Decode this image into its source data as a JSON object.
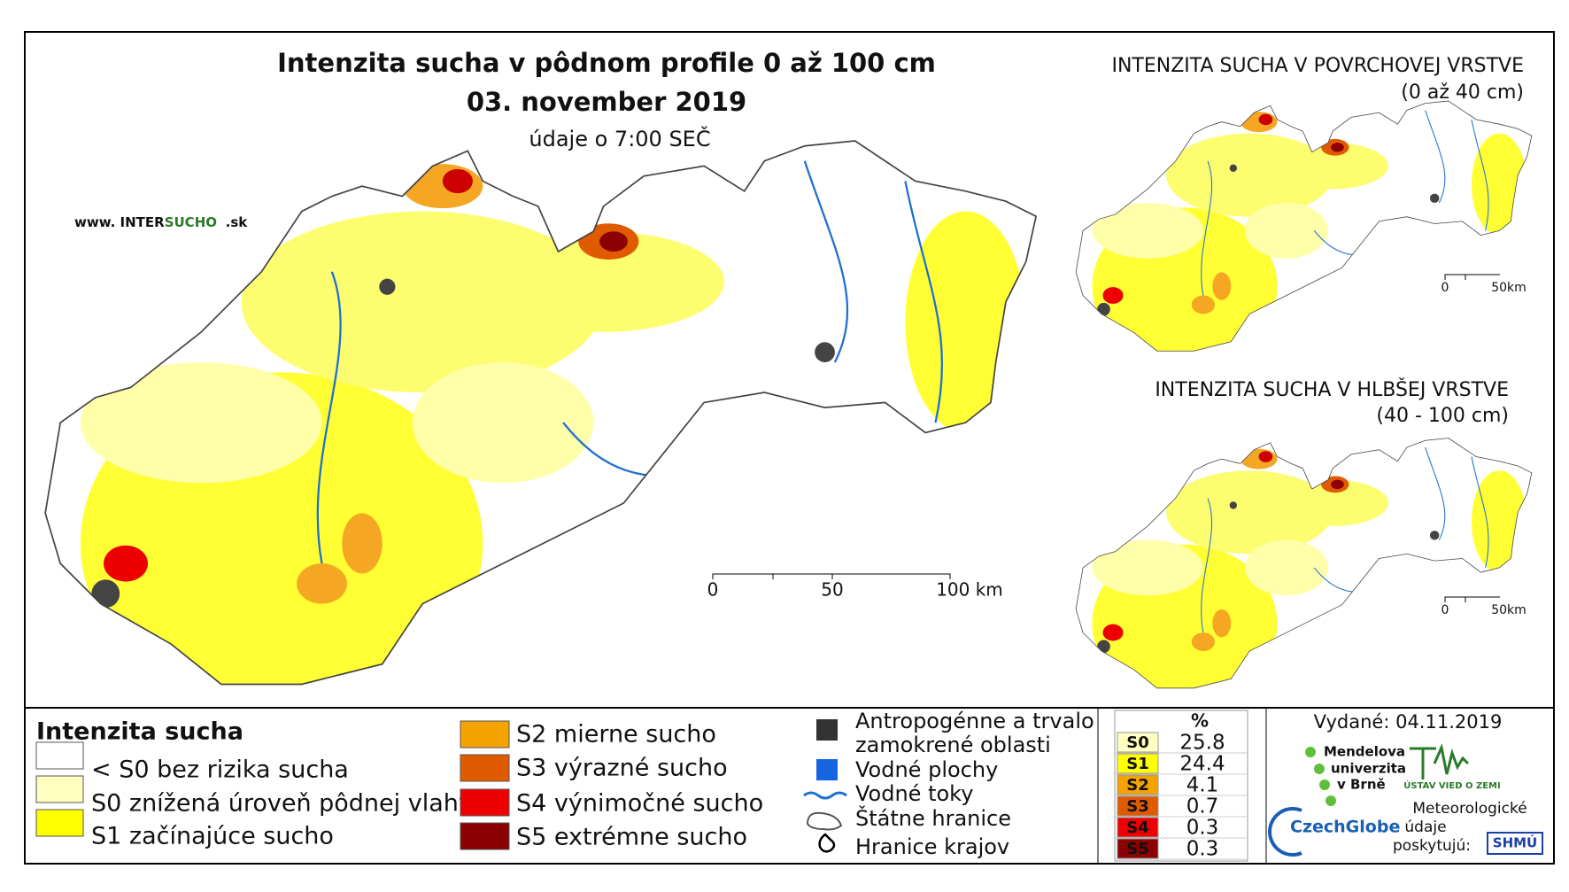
{
  "header": {
    "title": "Intenzita sucha v pôdnom profile 0 až 100 cm",
    "date": "03. november 2019",
    "subtitle": "údaje o 7:00 SEČ"
  },
  "site": {
    "prefix": "www. INTER",
    "brand": "SUCHO",
    "suffix": ".sk"
  },
  "main_scale": {
    "labels": [
      "0",
      "50",
      "100 km"
    ]
  },
  "insets": [
    {
      "title": "INTENZITA SUCHA V POVRCHOVEJ VRSTVE",
      "subtitle": "(0 až 40 cm)",
      "scale": [
        "0",
        "50km"
      ]
    },
    {
      "title": "INTENZITA SUCHA V HLBŠEJ VRSTVE",
      "subtitle": "(40 - 100 cm)",
      "scale": [
        "0",
        "50km"
      ]
    }
  ],
  "legend": {
    "title": "Intenzita sucha",
    "items": [
      "< S0 bez rizika sucha",
      "S0 znížená úroveň pôdnej vlahy",
      "S1 začínajúce sucho",
      "S2 mierne sucho",
      "S3 výrazné sucho",
      "S4 výnimočné sucho",
      "S5 extrémne sucho"
    ],
    "symbols": [
      "Antropogénne a trvalo",
      "zamokrené oblasti",
      "Vodné plochy",
      "Vodné toky",
      "Štátne hranice",
      "Hranice krajov"
    ]
  },
  "table": {
    "header": "%",
    "rows": [
      [
        "S0",
        25.8
      ],
      [
        "S1",
        24.4
      ],
      [
        "S2",
        4.1
      ],
      [
        "S3",
        0.7
      ],
      [
        "S4",
        0.3
      ],
      [
        "S5",
        0.3
      ]
    ]
  },
  "issued": "Vydané: 04.11.2019",
  "logos": {
    "mendel": [
      "Mendelova",
      "univerzita",
      "v Brně"
    ],
    "czechglobe": "CzechGlobe",
    "uvz": "ÚSTAV VIED O ZEMI",
    "provider": [
      "Meteorologické",
      "údaje",
      "poskytujú:"
    ],
    "shmu": "SHMÚ"
  }
}
